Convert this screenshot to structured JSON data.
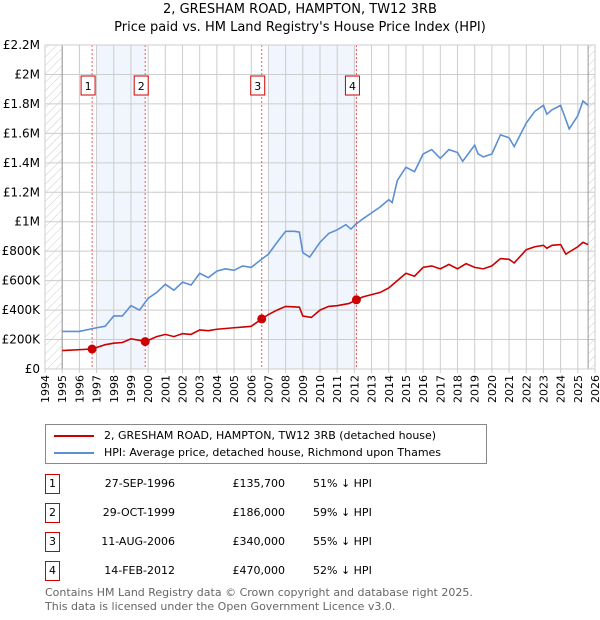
{
  "title": "2, GRESHAM ROAD, HAMPTON, TW12 3RB",
  "subtitle": "Price paid vs. HM Land Registry's House Price Index (HPI)",
  "chart_data": {
    "type": "line",
    "xlim": [
      1994,
      2026
    ],
    "ylim": [
      0,
      2200000
    ],
    "x_ticks": [
      "1994",
      "1995",
      "1996",
      "1997",
      "1998",
      "1999",
      "2000",
      "2001",
      "2002",
      "2003",
      "2004",
      "2005",
      "2006",
      "2007",
      "2008",
      "2009",
      "2010",
      "2011",
      "2012",
      "2013",
      "2014",
      "2015",
      "2016",
      "2017",
      "2018",
      "2019",
      "2020",
      "2021",
      "2022",
      "2023",
      "2024",
      "2025",
      "2026"
    ],
    "y_ticks": [
      {
        "v": 0,
        "l": "£0"
      },
      {
        "v": 200000,
        "l": "£200K"
      },
      {
        "v": 400000,
        "l": "£400K"
      },
      {
        "v": 600000,
        "l": "£600K"
      },
      {
        "v": 800000,
        "l": "£800K"
      },
      {
        "v": 1000000,
        "l": "£1M"
      },
      {
        "v": 1200000,
        "l": "£1.2M"
      },
      {
        "v": 1400000,
        "l": "£1.4M"
      },
      {
        "v": 1600000,
        "l": "£1.6M"
      },
      {
        "v": 1800000,
        "l": "£1.8M"
      },
      {
        "v": 2000000,
        "l": "£2M"
      },
      {
        "v": 2200000,
        "l": "£2.2M"
      }
    ],
    "grid": true,
    "series": [
      {
        "name": "2, GRESHAM ROAD, HAMPTON, TW12 3RB (detached house)",
        "color": "#cc0000",
        "points": [
          [
            1995,
            125000
          ],
          [
            1996.74,
            135700
          ],
          [
            1997.5,
            165000
          ],
          [
            1998,
            175000
          ],
          [
            1998.5,
            180000
          ],
          [
            1999,
            205000
          ],
          [
            1999.5,
            195000
          ],
          [
            1999.83,
            186000
          ],
          [
            2000.5,
            220000
          ],
          [
            2001,
            235000
          ],
          [
            2001.5,
            220000
          ],
          [
            2002,
            240000
          ],
          [
            2002.5,
            235000
          ],
          [
            2003,
            265000
          ],
          [
            2003.5,
            260000
          ],
          [
            2004,
            270000
          ],
          [
            2004.5,
            275000
          ],
          [
            2005,
            280000
          ],
          [
            2005.5,
            285000
          ],
          [
            2006,
            290000
          ],
          [
            2006.61,
            340000
          ],
          [
            2007,
            370000
          ],
          [
            2007.5,
            400000
          ],
          [
            2008,
            425000
          ],
          [
            2008.8,
            420000
          ],
          [
            2009,
            360000
          ],
          [
            2009.5,
            350000
          ],
          [
            2010,
            400000
          ],
          [
            2010.5,
            425000
          ],
          [
            2011,
            430000
          ],
          [
            2011.7,
            445000
          ],
          [
            2012.12,
            470000
          ],
          [
            2012.5,
            490000
          ],
          [
            2013,
            505000
          ],
          [
            2013.5,
            520000
          ],
          [
            2014,
            550000
          ],
          [
            2014.5,
            600000
          ],
          [
            2015,
            650000
          ],
          [
            2015.5,
            630000
          ],
          [
            2016,
            690000
          ],
          [
            2016.5,
            700000
          ],
          [
            2017,
            680000
          ],
          [
            2017.5,
            710000
          ],
          [
            2018,
            680000
          ],
          [
            2018.5,
            715000
          ],
          [
            2019,
            690000
          ],
          [
            2019.5,
            680000
          ],
          [
            2020,
            700000
          ],
          [
            2020.5,
            750000
          ],
          [
            2021,
            745000
          ],
          [
            2021.3,
            720000
          ],
          [
            2022,
            810000
          ],
          [
            2022.5,
            830000
          ],
          [
            2023,
            840000
          ],
          [
            2023.2,
            820000
          ],
          [
            2023.5,
            840000
          ],
          [
            2024,
            845000
          ],
          [
            2024.3,
            780000
          ],
          [
            2025,
            830000
          ],
          [
            2025.3,
            860000
          ],
          [
            2025.6,
            845000
          ]
        ]
      },
      {
        "name": "HPI: Average price, detached house, Richmond upon Thames",
        "color": "#5b8fd4",
        "points": [
          [
            1995,
            255000
          ],
          [
            1996,
            255000
          ],
          [
            1997,
            280000
          ],
          [
            1997.5,
            290000
          ],
          [
            1998,
            360000
          ],
          [
            1998.5,
            360000
          ],
          [
            1999,
            430000
          ],
          [
            1999.5,
            400000
          ],
          [
            2000,
            480000
          ],
          [
            2000.5,
            520000
          ],
          [
            2001,
            575000
          ],
          [
            2001.5,
            535000
          ],
          [
            2002,
            590000
          ],
          [
            2002.5,
            570000
          ],
          [
            2003,
            650000
          ],
          [
            2003.5,
            620000
          ],
          [
            2004,
            665000
          ],
          [
            2004.5,
            680000
          ],
          [
            2005,
            670000
          ],
          [
            2005.5,
            700000
          ],
          [
            2006,
            690000
          ],
          [
            2006.6,
            745000
          ],
          [
            2007,
            780000
          ],
          [
            2007.5,
            860000
          ],
          [
            2008,
            935000
          ],
          [
            2008.5,
            935000
          ],
          [
            2008.8,
            930000
          ],
          [
            2009,
            790000
          ],
          [
            2009.4,
            760000
          ],
          [
            2010,
            860000
          ],
          [
            2010.5,
            920000
          ],
          [
            2011,
            945000
          ],
          [
            2011.5,
            980000
          ],
          [
            2011.8,
            950000
          ],
          [
            2012.1,
            985000
          ],
          [
            2012.5,
            1020000
          ],
          [
            2013,
            1060000
          ],
          [
            2013.5,
            1100000
          ],
          [
            2014,
            1150000
          ],
          [
            2014.2,
            1130000
          ],
          [
            2014.5,
            1280000
          ],
          [
            2015,
            1370000
          ],
          [
            2015.5,
            1340000
          ],
          [
            2016,
            1460000
          ],
          [
            2016.5,
            1490000
          ],
          [
            2017,
            1430000
          ],
          [
            2017.5,
            1490000
          ],
          [
            2018,
            1470000
          ],
          [
            2018.3,
            1410000
          ],
          [
            2019,
            1520000
          ],
          [
            2019.2,
            1460000
          ],
          [
            2019.5,
            1440000
          ],
          [
            2020,
            1460000
          ],
          [
            2020.5,
            1590000
          ],
          [
            2021,
            1570000
          ],
          [
            2021.3,
            1510000
          ],
          [
            2022,
            1670000
          ],
          [
            2022.5,
            1750000
          ],
          [
            2023,
            1790000
          ],
          [
            2023.2,
            1730000
          ],
          [
            2023.5,
            1760000
          ],
          [
            2024,
            1790000
          ],
          [
            2024.5,
            1630000
          ],
          [
            2025,
            1720000
          ],
          [
            2025.3,
            1820000
          ],
          [
            2025.6,
            1790000
          ]
        ]
      }
    ],
    "sales": [
      {
        "id": "1",
        "x": 1996.74,
        "price": 135700
      },
      {
        "id": "2",
        "x": 1999.83,
        "price": 186000
      },
      {
        "id": "3",
        "x": 2006.61,
        "price": 340000
      },
      {
        "id": "4",
        "x": 2012.12,
        "price": 470000
      }
    ],
    "shaded_ranges": [
      [
        1997,
        1999.83
      ],
      [
        2007,
        2012.12
      ]
    ],
    "hatched_ranges": [
      [
        1994,
        1995
      ],
      [
        2025.6,
        2026
      ]
    ],
    "legend_position": "below"
  },
  "legend": [
    "2, GRESHAM ROAD, HAMPTON, TW12 3RB (detached house)",
    "HPI: Average price, detached house, Richmond upon Thames"
  ],
  "transactions": [
    {
      "num": "1",
      "date": "27-SEP-1996",
      "price": "£135,700",
      "pct": "51% ↓ HPI"
    },
    {
      "num": "2",
      "date": "29-OCT-1999",
      "price": "£186,000",
      "pct": "59% ↓ HPI"
    },
    {
      "num": "3",
      "date": "11-AUG-2006",
      "price": "£340,000",
      "pct": "55% ↓ HPI"
    },
    {
      "num": "4",
      "date": "14-FEB-2012",
      "price": "£470,000",
      "pct": "52% ↓ HPI"
    }
  ],
  "footer": [
    "Contains HM Land Registry data © Crown copyright and database right 2025.",
    "This data is licensed under the Open Government Licence v3.0."
  ]
}
